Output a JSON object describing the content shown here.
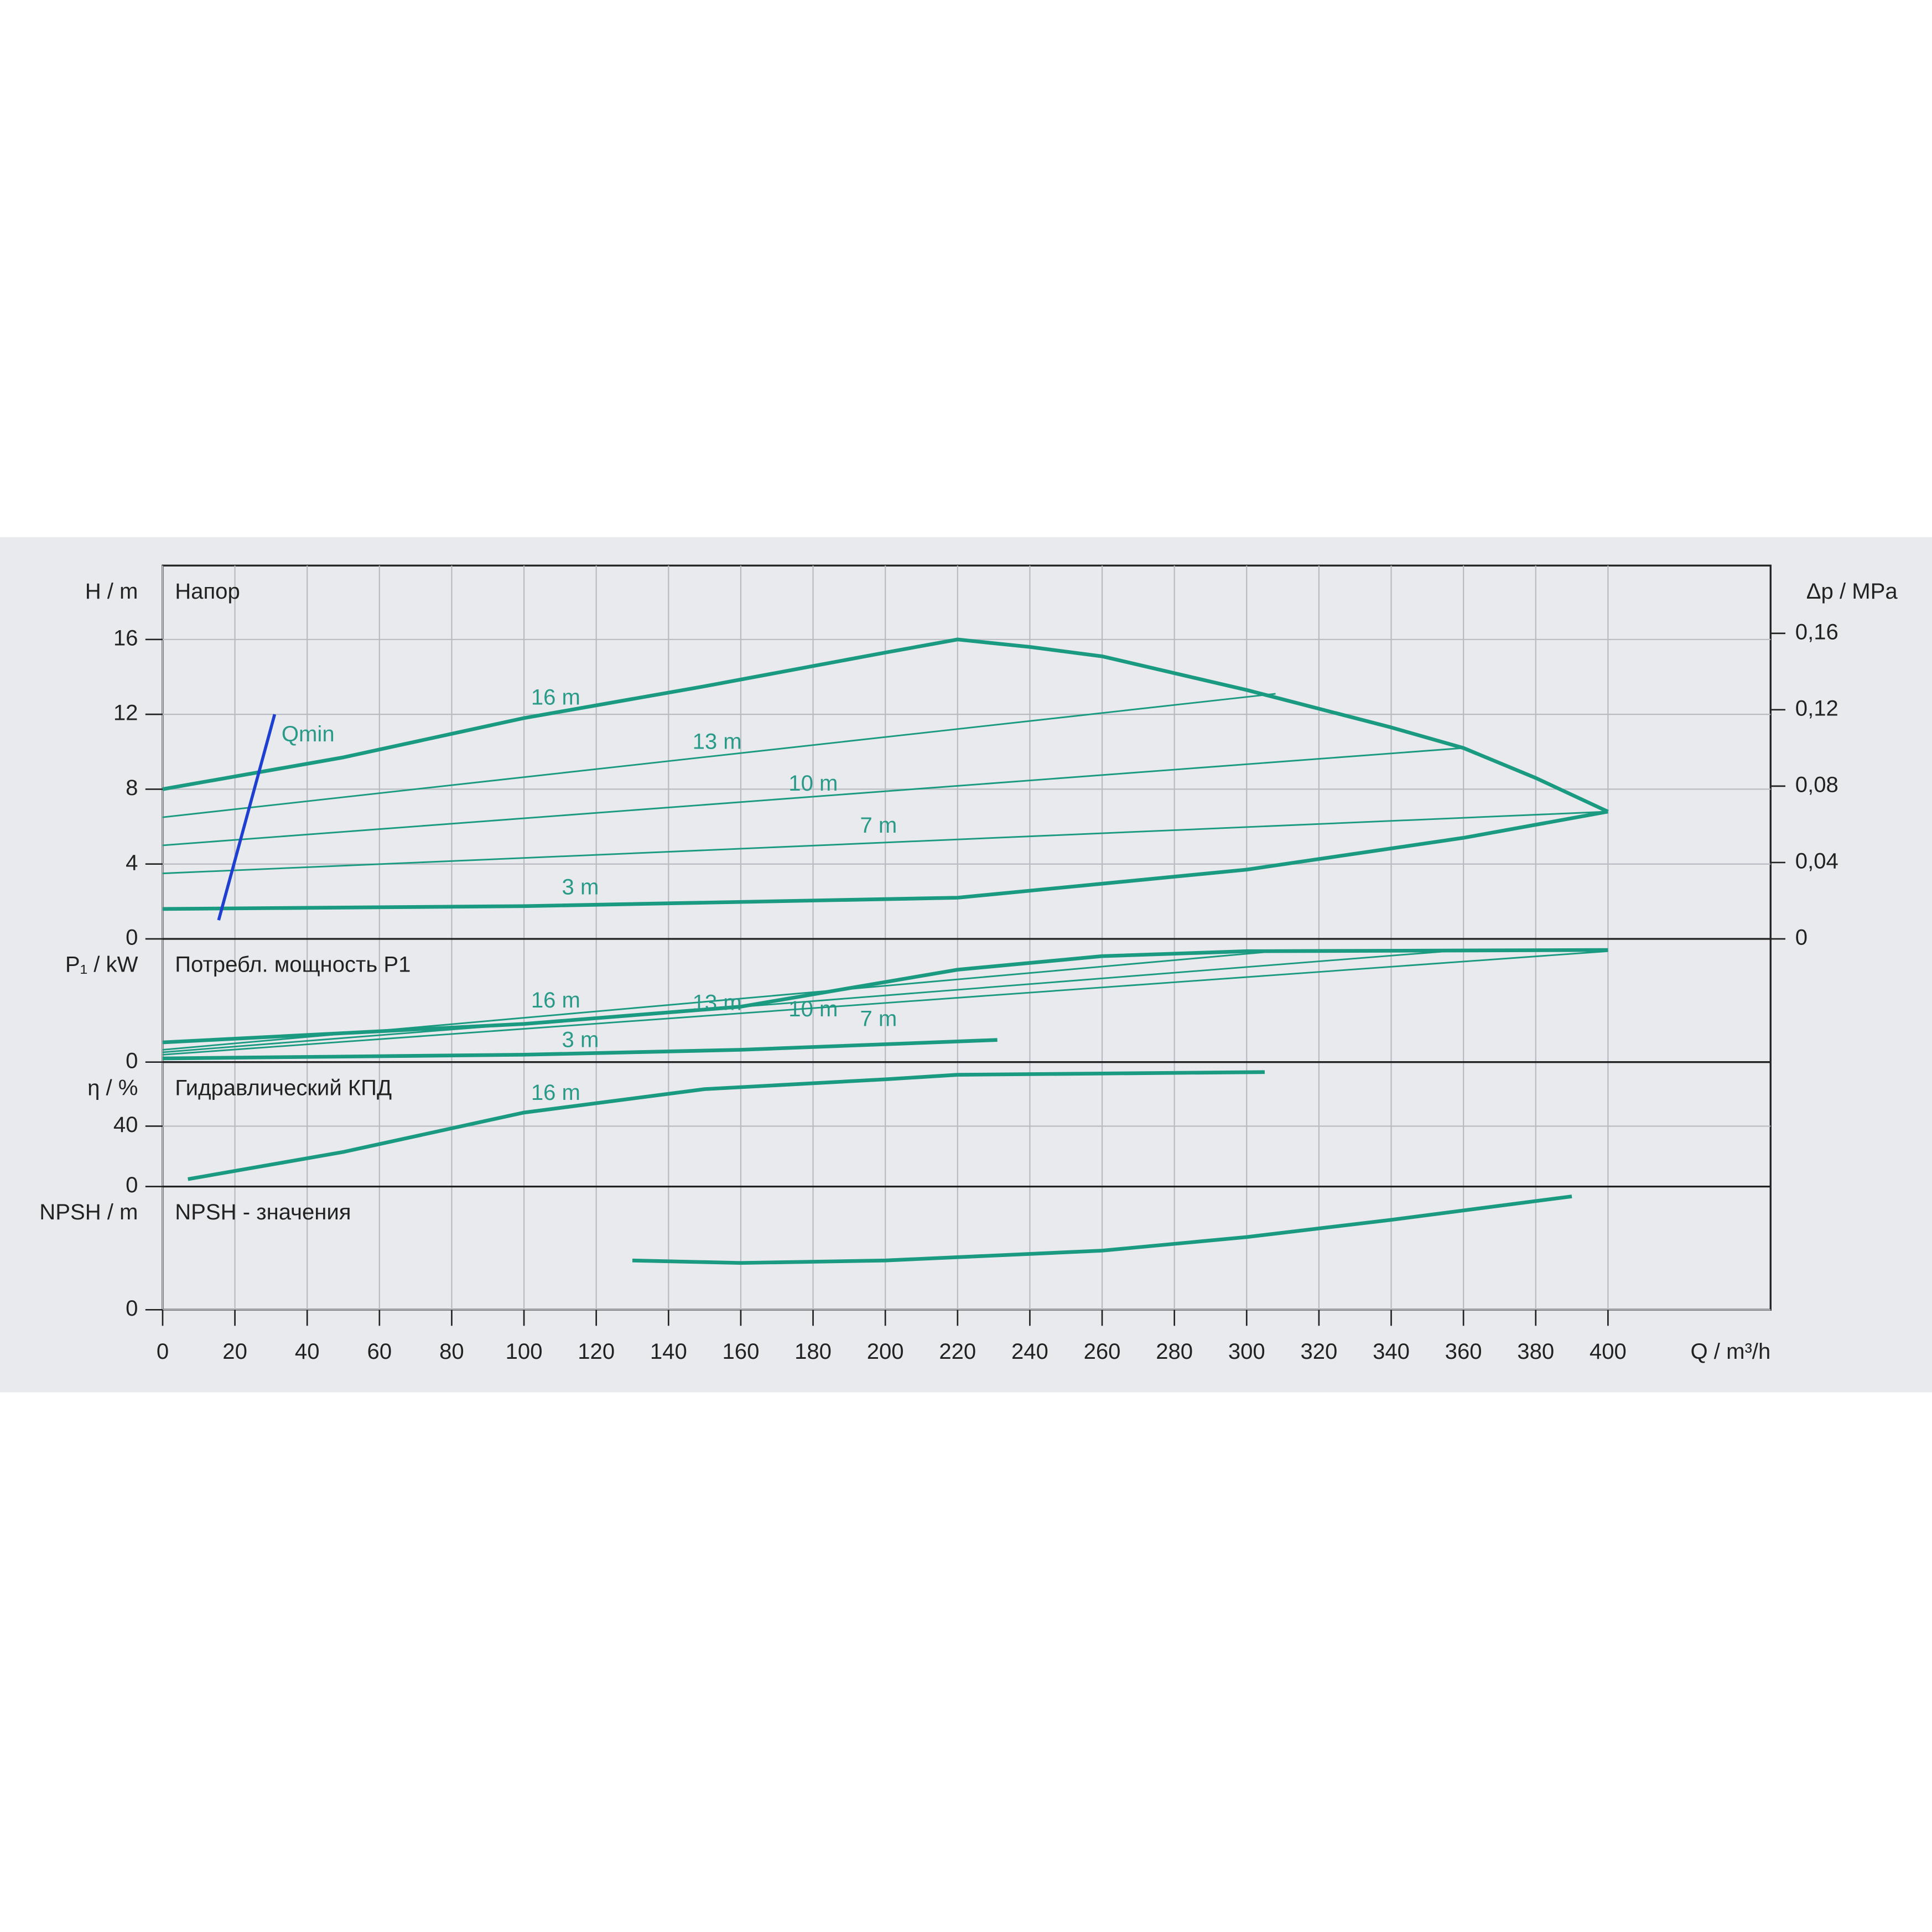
{
  "chart_data": {
    "type": "line",
    "xlabel": "Q / m³/h",
    "xlim": [
      0,
      445
    ],
    "xticks": [
      0,
      20,
      40,
      60,
      80,
      100,
      120,
      140,
      160,
      180,
      200,
      220,
      240,
      260,
      280,
      300,
      320,
      340,
      360,
      380,
      400
    ],
    "panels": [
      {
        "title": "Напор",
        "ylabel": "H / m",
        "ylim": [
          0,
          19.95
        ],
        "yticks": [
          0,
          4,
          8,
          12,
          16
        ],
        "y2label": "Δp / MPa",
        "y2lim": [
          0,
          0.1955
        ],
        "y2ticks": [
          0,
          {
            "value": 0.04,
            "label": "0,04"
          },
          {
            "value": 0.08,
            "label": "0,08"
          },
          {
            "value": 0.12,
            "label": "0,12"
          },
          {
            "value": 0.16,
            "label": "0,16"
          }
        ],
        "series": [
          {
            "name": "16 m",
            "color": "#1a9a80",
            "width": 3,
            "x": [
              0,
              50,
              100,
              150,
              200,
              220,
              240,
              260,
              300,
              340,
              360,
              380,
              400
            ],
            "values": [
              8,
              9.7,
              11.8,
              13.5,
              15.3,
              16,
              15.6,
              15.1,
              13.3,
              11.3,
              10.2,
              8.6,
              6.8
            ]
          },
          {
            "name": "13 m",
            "color": "#1a9a80",
            "width": 1.3,
            "x": [
              0,
              308
            ],
            "values": [
              6.5,
              13.1
            ]
          },
          {
            "name": "10 m",
            "color": "#1a9a80",
            "width": 1.3,
            "x": [
              0,
              360
            ],
            "values": [
              5,
              10.2
            ]
          },
          {
            "name": "7 m",
            "color": "#1a9a80",
            "width": 1.3,
            "x": [
              0,
              400
            ],
            "values": [
              3.5,
              6.8
            ]
          },
          {
            "name": "3 m",
            "color": "#1a9a80",
            "width": 3,
            "x": [
              0,
              100,
              220,
              300,
              360,
              400
            ],
            "values": [
              1.6,
              1.75,
              2.2,
              3.7,
              5.4,
              6.8
            ]
          },
          {
            "name": "Qmin",
            "color": "#1f3fd0",
            "width": 2.5,
            "x": [
              15.5,
              31
            ],
            "values": [
              1,
              12
            ]
          }
        ]
      },
      {
        "title": "Потребл. мощность P1",
        "ylabel": "P₁ / kW",
        "ylim": [
          0,
          2
        ],
        "yticks": [
          0
        ],
        "series": [
          {
            "name": "16 m",
            "color": "#1a9a80",
            "width": 3,
            "x": [
              0,
              100,
              160,
              220,
              260,
              300,
              400
            ],
            "values": [
              0.32,
              0.62,
              0.9,
              1.5,
              1.72,
              1.8,
              1.82
            ]
          },
          {
            "name": "13 m",
            "color": "#1a9a80",
            "width": 1.3,
            "x": [
              0,
              308
            ],
            "values": [
              0.2,
              1.8
            ]
          },
          {
            "name": "10 m",
            "color": "#1a9a80",
            "width": 1.3,
            "x": [
              0,
              360
            ],
            "values": [
              0.16,
              1.82
            ]
          },
          {
            "name": "7 m",
            "color": "#1a9a80",
            "width": 1.3,
            "x": [
              0,
              400
            ],
            "values": [
              0.12,
              1.8
            ]
          },
          {
            "name": "3 m",
            "color": "#1a9a80",
            "width": 3,
            "x": [
              0,
              100,
              160,
              231
            ],
            "values": [
              0.06,
              0.12,
              0.2,
              0.36
            ]
          }
        ]
      },
      {
        "title": "Гидравлический КПД",
        "ylabel": "η / %",
        "ylim": [
          0,
          82.4
        ],
        "yticks": [
          0,
          40
        ],
        "series": [
          {
            "name": "16 m",
            "color": "#1a9a80",
            "width": 3,
            "x": [
              7,
              50,
              100,
              150,
              200,
              220,
              305
            ],
            "values": [
              4.9,
              22.9,
              49,
              64.5,
              71,
              74,
              75.8
            ]
          }
        ]
      },
      {
        "title": "NPSH - значения",
        "ylabel": "NPSH / m",
        "ylim": [
          0,
          10
        ],
        "yticks": [
          0
        ],
        "series": [
          {
            "color": "#1a9a80",
            "width": 3,
            "x": [
              130,
              160,
              200,
              260,
              300,
              340,
              390
            ],
            "values": [
              4,
              3.8,
              4,
              4.8,
              5.9,
              7.3,
              9.2
            ]
          }
        ]
      }
    ]
  }
}
